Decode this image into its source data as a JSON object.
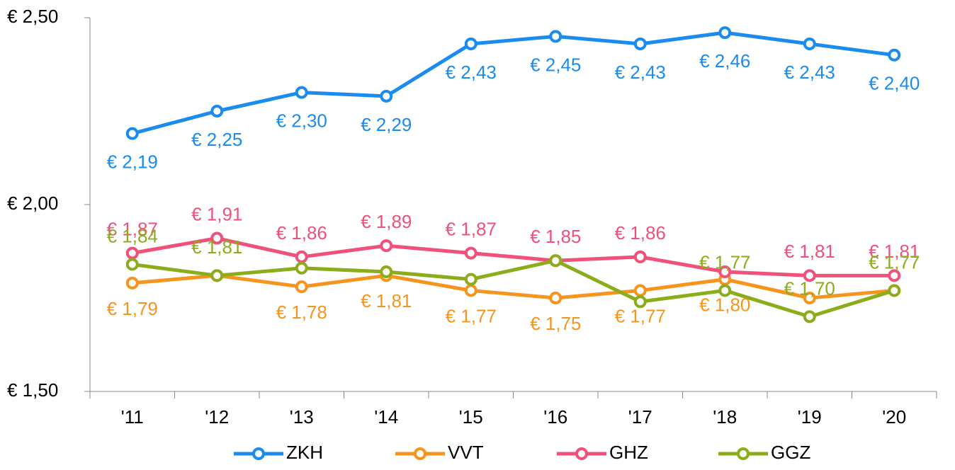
{
  "chart_data": {
    "type": "line",
    "categories": [
      "'11",
      "'12",
      "'13",
      "'14",
      "'15",
      "'16",
      "'17",
      "'18",
      "'19",
      "'20"
    ],
    "series": [
      {
        "name": "ZKH",
        "color": "#1a8cf0",
        "values": [
          2.19,
          2.25,
          2.3,
          2.29,
          2.43,
          2.45,
          2.43,
          2.46,
          2.43,
          2.4
        ],
        "value_labels": [
          "€ 2,19",
          "€ 2,25",
          "€ 2,30",
          "€ 2,29",
          "€ 2,43",
          "€ 2,45",
          "€ 2,43",
          "€ 2,46",
          "€ 2,43",
          "€ 2,40"
        ]
      },
      {
        "name": "VVT",
        "color": "#f7941d",
        "values": [
          1.79,
          1.81,
          1.78,
          1.81,
          1.77,
          1.75,
          1.77,
          1.8,
          1.75,
          1.77
        ],
        "value_labels": [
          "€ 1,79",
          null,
          "€ 1,78",
          "€ 1,81",
          "€ 1,77",
          "€ 1,75",
          "€ 1,77",
          "€ 1,80",
          null,
          null
        ]
      },
      {
        "name": "GHZ",
        "color": "#f0507a",
        "values": [
          1.87,
          1.91,
          1.86,
          1.89,
          1.87,
          1.85,
          1.86,
          1.82,
          1.81,
          1.81
        ],
        "value_labels": [
          "€ 1,87",
          "€ 1,91",
          "€ 1,86",
          "€ 1,89",
          "€ 1,87",
          "€ 1,85",
          "€ 1,86",
          null,
          "€ 1,81",
          "€ 1,81"
        ]
      },
      {
        "name": "GGZ",
        "color": "#8cac1a",
        "values": [
          1.84,
          1.81,
          1.83,
          1.82,
          1.8,
          1.85,
          1.74,
          1.77,
          1.7,
          1.77
        ],
        "value_labels": [
          "€ 1,84",
          "€ 1,81",
          null,
          null,
          null,
          null,
          null,
          "€ 1,77",
          "€ 1,70",
          "€ 1,77"
        ]
      }
    ],
    "ylim": [
      1.5,
      2.5
    ],
    "yticks": [
      {
        "value": 1.5,
        "label": "€ 1,50"
      },
      {
        "value": 2.0,
        "label": "€ 2,00"
      },
      {
        "value": 2.5,
        "label": "€ 2,50"
      }
    ],
    "grid": false,
    "legend": "bottom"
  }
}
